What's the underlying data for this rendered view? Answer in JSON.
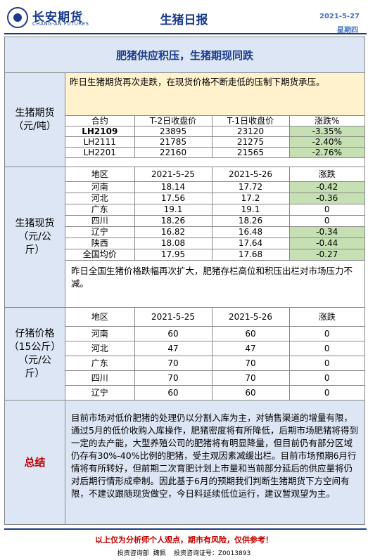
{
  "header": {
    "logo_cn": "长安期货",
    "logo_en": "CHANG-AN.FUTURES",
    "title": "生猪日报",
    "date": "2021-5-27",
    "weekday": "星期四"
  },
  "banner": "肥猪供应积压，生猪期现同跌",
  "futures": {
    "label": "生猪期货\n（元/吨）",
    "note": "昨日生猪期货再次走跌，在现货价格不断走低的压制下期货承压。",
    "headers": [
      "合约",
      "T-2日收盘价",
      "T-1日收盘价",
      "涨跌%"
    ],
    "rows": [
      {
        "contract": "LH2109",
        "t2": "23895",
        "t1": "23120",
        "change": "-3.35%"
      },
      {
        "contract": "LH2111",
        "t2": "21785",
        "t1": "21275",
        "change": "-2.40%"
      },
      {
        "contract": "LH2201",
        "t2": "22160",
        "t1": "21565",
        "change": "-2.76%"
      }
    ]
  },
  "spot": {
    "label": "生猪现货\n（元/公\n斤）",
    "headers": [
      "地区",
      "2021-5-25",
      "2021-5-26",
      "涨跌"
    ],
    "rows": [
      {
        "region": "河南",
        "d1": "18.14",
        "d2": "17.72",
        "change": "-0.42",
        "neg": true
      },
      {
        "region": "河北",
        "d1": "17.56",
        "d2": "17.2",
        "change": "-0.36",
        "neg": true
      },
      {
        "region": "广东",
        "d1": "19.1",
        "d2": "19.1",
        "change": "0",
        "neg": false
      },
      {
        "region": "四川",
        "d1": "18.26",
        "d2": "18.26",
        "change": "0",
        "neg": false
      },
      {
        "region": "辽宁",
        "d1": "16.82",
        "d2": "16.48",
        "change": "-0.34",
        "neg": true
      },
      {
        "region": "陕西",
        "d1": "18.08",
        "d2": "17.64",
        "change": "-0.44",
        "neg": true
      },
      {
        "region": "全国均价",
        "d1": "17.95",
        "d2": "17.68",
        "change": "-0.27",
        "neg": true
      }
    ],
    "note": "昨日全国生猪价格跌幅再次扩大，肥猪存栏高位和积压出栏对市场压力不减。"
  },
  "piglet": {
    "label": "仔猪价格\n（15公斤）\n（元/公\n斤）",
    "headers": [
      "地区",
      "2021-5-25",
      "2021-5-26",
      "涨跌"
    ],
    "rows": [
      {
        "region": "河南",
        "d1": "60",
        "d2": "60",
        "change": "0"
      },
      {
        "region": "河北",
        "d1": "47",
        "d2": "47",
        "change": "0"
      },
      {
        "region": "广东",
        "d1": "70",
        "d2": "70",
        "change": "0"
      },
      {
        "region": "四川",
        "d1": "70",
        "d2": "70",
        "change": "0"
      },
      {
        "region": "辽宁",
        "d1": "60",
        "d2": "60",
        "change": "0"
      }
    ]
  },
  "summary": {
    "label": "总结",
    "text": "目前市场对低价肥猪的处理仍以分割入库为主，对销售渠道的增量有限，通过5月的低价收购入库操作，肥猪密度将有所降低，后期市场肥猪将得到一定的去产能，大型养殖公司的肥猪将有明显降量，但目前仍有部分区域仍存有30%-40%比例的肥猪，受主观因素减缓出栏。目前市场预期6月行情将有所转好，但前期二次育肥计划上市量和当前部分延后的供应量将仍对后期行情形成牵制。因此基于6月的预期我们判断生猪期货下方空间有限，不建议跟随现货做空，今日料延续低位运行，建议暂观望为主。"
  },
  "footer": {
    "disclaimer": "以上仅为分析师个人观点，期市有风险，仅供参考！",
    "license": "投资咨询部  魏佩    投资咨询证号：Z0013893"
  },
  "colors": {
    "brand": "#1a3b8c",
    "panel": "#dde6f4",
    "note": "#fff2cc",
    "negative": "#c6e0b4",
    "warning": "#c00000"
  }
}
